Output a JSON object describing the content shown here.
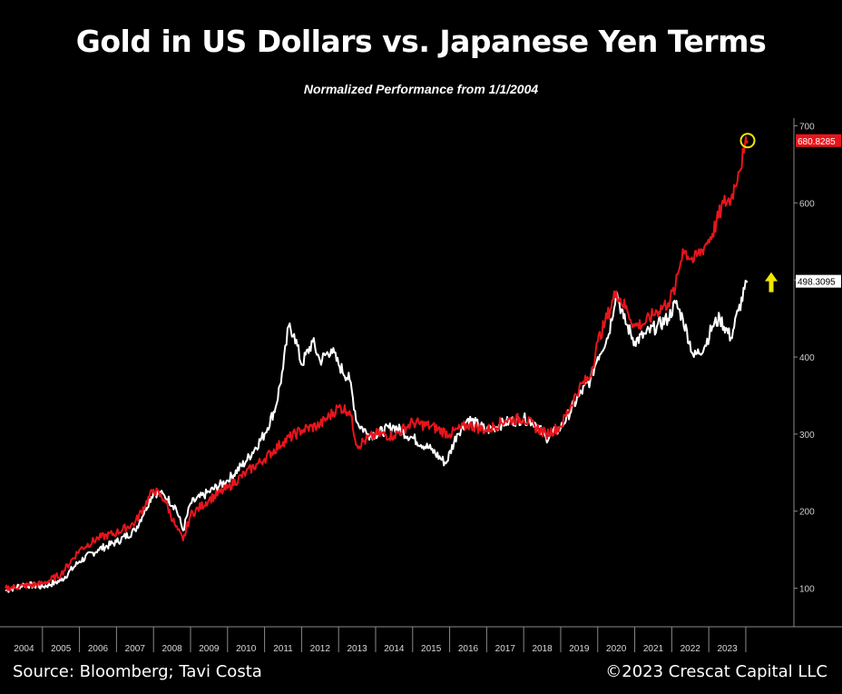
{
  "header": {
    "title": "Gold in US Dollars vs. Japanese Yen Terms",
    "subtitle": "Normalized Performance  from 1/1/2004"
  },
  "footer": {
    "source": "Source: Bloomberg; Tavi Costa",
    "copyright": "©2023 Crescat Capital LLC"
  },
  "colors": {
    "background": "#000000",
    "yen_series": "#e8141b",
    "usd_series": "#ffffff",
    "highlight": "#f2e600"
  },
  "chart_data": {
    "type": "line",
    "title": "Gold in US Dollars vs. Japanese Yen Terms",
    "subtitle": "Normalized Performance  from 1/1/2004",
    "x_ticks": [
      "2004",
      "2005",
      "2006",
      "2007",
      "2008",
      "2009",
      "2010",
      "2011",
      "2012",
      "2013",
      "2014",
      "2015",
      "2016",
      "2017",
      "2018",
      "2019",
      "2020",
      "2021",
      "2022",
      "2023"
    ],
    "y_ticks": [
      100,
      200,
      300,
      400,
      500,
      600,
      700
    ],
    "ylim": [
      50,
      710
    ],
    "xlim": [
      2004.0,
      2025.3
    ],
    "axis_side": "right",
    "grid": false,
    "series": [
      {
        "key": "yen",
        "color": "#e8141b",
        "last_value_label": "680.8285",
        "points": [
          [
            2004.0,
            100
          ],
          [
            2004.5,
            103
          ],
          [
            2005.0,
            106
          ],
          [
            2005.5,
            118
          ],
          [
            2006.0,
            150
          ],
          [
            2006.5,
            165
          ],
          [
            2007.0,
            172
          ],
          [
            2007.5,
            185
          ],
          [
            2008.0,
            228
          ],
          [
            2008.3,
            215
          ],
          [
            2008.6,
            180
          ],
          [
            2008.8,
            162
          ],
          [
            2009.0,
            195
          ],
          [
            2009.5,
            215
          ],
          [
            2010.0,
            230
          ],
          [
            2010.5,
            250
          ],
          [
            2011.0,
            268
          ],
          [
            2011.5,
            290
          ],
          [
            2012.0,
            305
          ],
          [
            2012.5,
            312
          ],
          [
            2013.0,
            335
          ],
          [
            2013.3,
            330
          ],
          [
            2013.5,
            285
          ],
          [
            2014.0,
            300
          ],
          [
            2014.5,
            298
          ],
          [
            2015.0,
            315
          ],
          [
            2015.5,
            310
          ],
          [
            2016.0,
            300
          ],
          [
            2016.5,
            312
          ],
          [
            2017.0,
            305
          ],
          [
            2017.5,
            318
          ],
          [
            2018.0,
            320
          ],
          [
            2018.3,
            310
          ],
          [
            2018.6,
            300
          ],
          [
            2019.0,
            310
          ],
          [
            2019.5,
            360
          ],
          [
            2019.8,
            375
          ],
          [
            2020.0,
            420
          ],
          [
            2020.2,
            445
          ],
          [
            2020.5,
            485
          ],
          [
            2020.8,
            460
          ],
          [
            2021.0,
            440
          ],
          [
            2021.3,
            445
          ],
          [
            2021.6,
            460
          ],
          [
            2021.9,
            470
          ],
          [
            2022.1,
            490
          ],
          [
            2022.3,
            540
          ],
          [
            2022.6,
            525
          ],
          [
            2022.9,
            545
          ],
          [
            2023.1,
            560
          ],
          [
            2023.4,
            600
          ],
          [
            2023.6,
            605
          ],
          [
            2023.8,
            640
          ],
          [
            2023.95,
            665
          ],
          [
            2024.05,
            680.8
          ]
        ]
      },
      {
        "key": "usd",
        "color": "#ffffff",
        "last_value_label": "498.3095",
        "points": [
          [
            2004.0,
            97
          ],
          [
            2004.5,
            105
          ],
          [
            2005.0,
            102
          ],
          [
            2005.5,
            110
          ],
          [
            2006.0,
            135
          ],
          [
            2006.5,
            150
          ],
          [
            2007.0,
            160
          ],
          [
            2007.5,
            175
          ],
          [
            2008.0,
            225
          ],
          [
            2008.3,
            220
          ],
          [
            2008.6,
            205
          ],
          [
            2008.8,
            175
          ],
          [
            2009.0,
            210
          ],
          [
            2009.5,
            225
          ],
          [
            2010.0,
            240
          ],
          [
            2010.5,
            265
          ],
          [
            2011.0,
            300
          ],
          [
            2011.3,
            335
          ],
          [
            2011.5,
            385
          ],
          [
            2011.65,
            440
          ],
          [
            2011.8,
            430
          ],
          [
            2012.0,
            390
          ],
          [
            2012.3,
            420
          ],
          [
            2012.5,
            395
          ],
          [
            2012.8,
            410
          ],
          [
            2013.0,
            390
          ],
          [
            2013.3,
            370
          ],
          [
            2013.5,
            315
          ],
          [
            2013.8,
            300
          ],
          [
            2014.0,
            300
          ],
          [
            2014.5,
            310
          ],
          [
            2015.0,
            295
          ],
          [
            2015.5,
            280
          ],
          [
            2015.9,
            262
          ],
          [
            2016.2,
            300
          ],
          [
            2016.5,
            320
          ],
          [
            2017.0,
            305
          ],
          [
            2017.5,
            315
          ],
          [
            2018.0,
            320
          ],
          [
            2018.3,
            315
          ],
          [
            2018.6,
            295
          ],
          [
            2019.0,
            308
          ],
          [
            2019.5,
            350
          ],
          [
            2019.8,
            370
          ],
          [
            2020.0,
            400
          ],
          [
            2020.3,
            430
          ],
          [
            2020.5,
            485
          ],
          [
            2020.7,
            450
          ],
          [
            2021.0,
            420
          ],
          [
            2021.3,
            430
          ],
          [
            2021.6,
            440
          ],
          [
            2021.9,
            450
          ],
          [
            2022.1,
            470
          ],
          [
            2022.3,
            450
          ],
          [
            2022.6,
            400
          ],
          [
            2022.9,
            415
          ],
          [
            2023.1,
            440
          ],
          [
            2023.3,
            450
          ],
          [
            2023.6,
            425
          ],
          [
            2023.8,
            460
          ],
          [
            2024.05,
            498.3
          ]
        ]
      }
    ],
    "annotations": [
      {
        "kind": "circle",
        "at_series": "yen"
      },
      {
        "kind": "up-arrow",
        "color": "#f2e600"
      }
    ]
  }
}
